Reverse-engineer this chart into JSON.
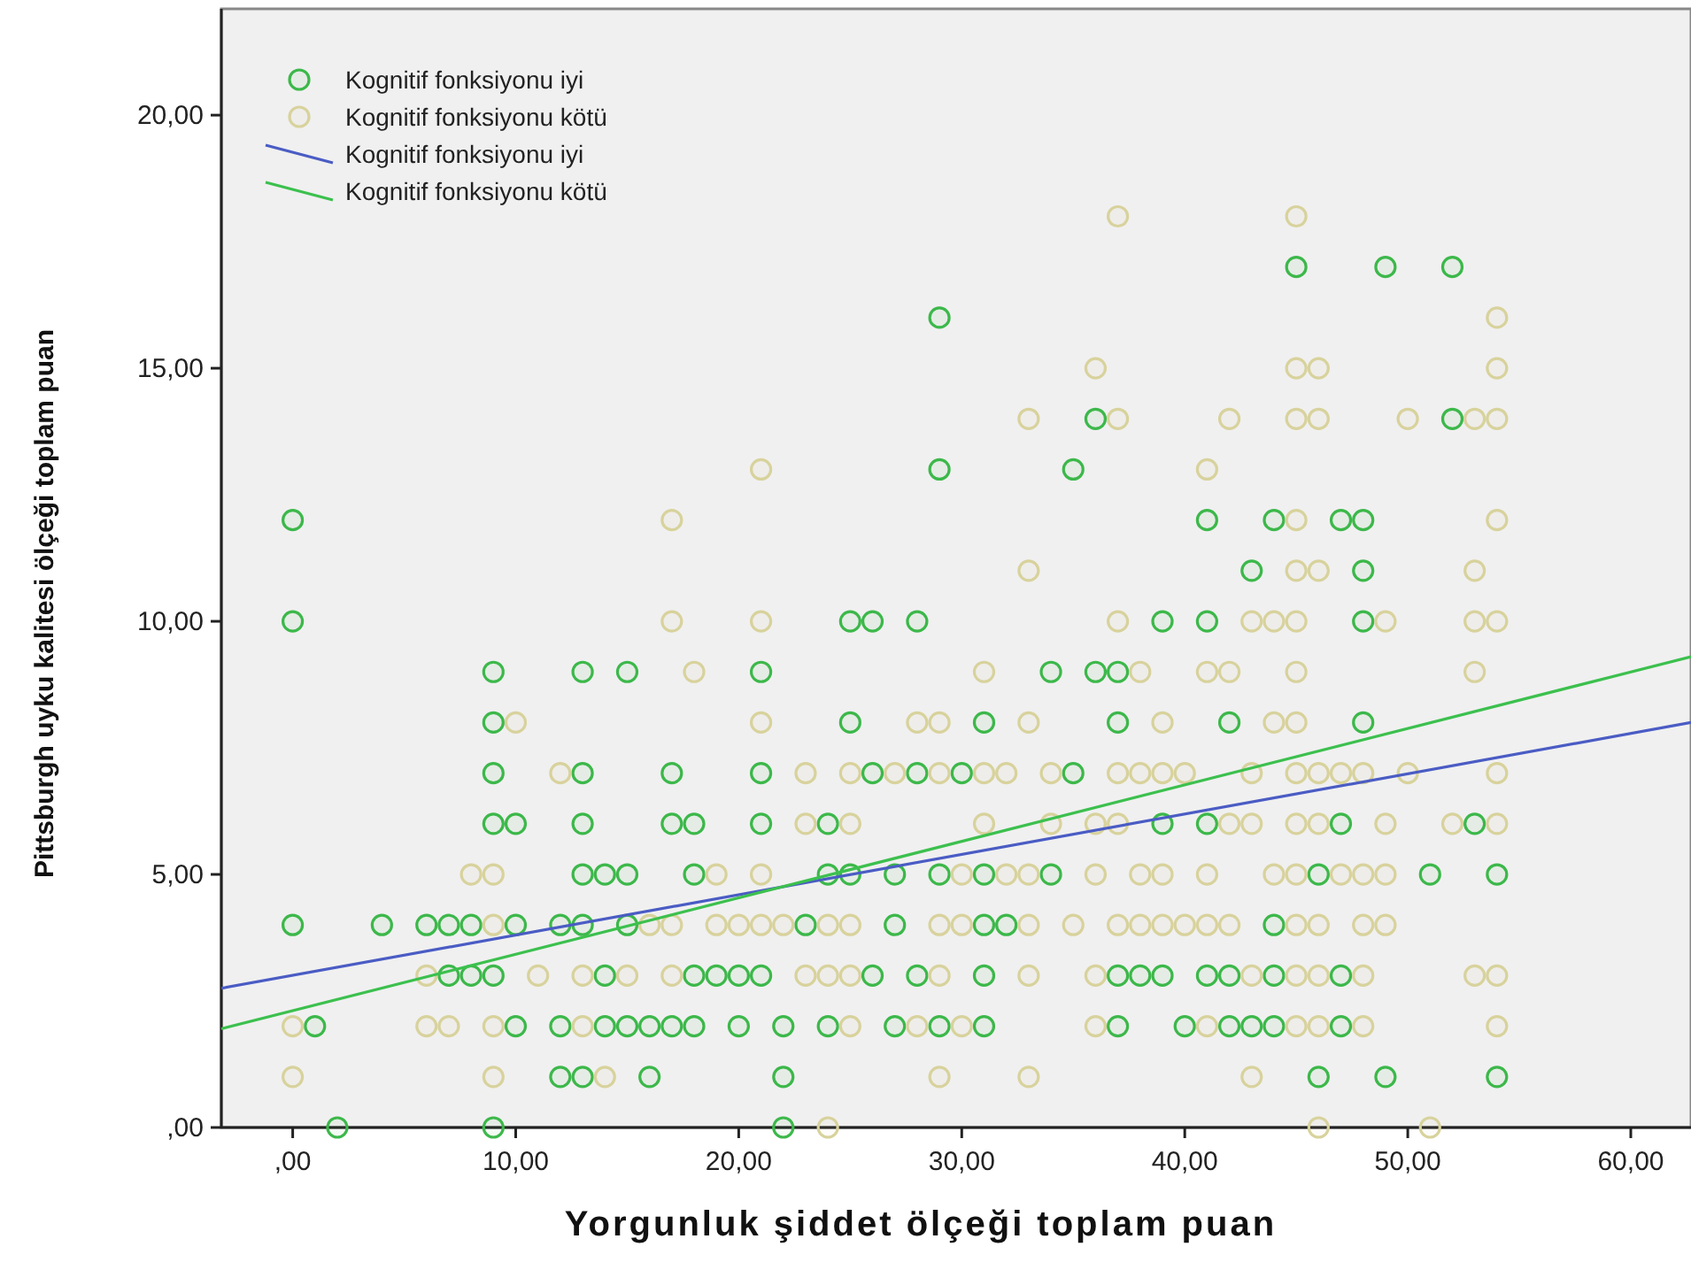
{
  "chart_data": {
    "type": "scatter",
    "xlabel": "Yorgunluk şiddet ölçeği toplam puan",
    "ylabel": "Pittsburgh uyku kalitesi ölçeği toplam puan",
    "xlim": [
      -3.2,
      62.7
    ],
    "ylim": [
      0,
      22.1
    ],
    "xticks": [
      {
        "value": 0,
        "label": ",00"
      },
      {
        "value": 10,
        "label": "10,00"
      },
      {
        "value": 20,
        "label": "20,00"
      },
      {
        "value": 30,
        "label": "30,00"
      },
      {
        "value": 40,
        "label": "40,00"
      },
      {
        "value": 50,
        "label": "50,00"
      },
      {
        "value": 60,
        "label": "60,00"
      }
    ],
    "yticks": [
      {
        "value": 0,
        "label": ",00"
      },
      {
        "value": 5,
        "label": "5,00"
      },
      {
        "value": 10,
        "label": "10,00"
      },
      {
        "value": 15,
        "label": "15,00"
      },
      {
        "value": 20,
        "label": "20,00"
      }
    ],
    "legend": "top left",
    "grid": false,
    "series": [
      {
        "name": "Kognitif fonksiyonu iyi",
        "color": "#3cb84a",
        "marker": "circle",
        "x": [
          2,
          9,
          22,
          12,
          13,
          16,
          22,
          46,
          49,
          54,
          1,
          10,
          12,
          14,
          15,
          16,
          17,
          18,
          20,
          22,
          24,
          27,
          29,
          31,
          37,
          40,
          42,
          43,
          44,
          47,
          7,
          8,
          9,
          14,
          18,
          19,
          20,
          21,
          26,
          28,
          31,
          37,
          38,
          39,
          41,
          42,
          44,
          47,
          0,
          4,
          6,
          7,
          8,
          10,
          12,
          13,
          15,
          23,
          27,
          31,
          32,
          44,
          13,
          14,
          15,
          18,
          24,
          25,
          27,
          29,
          31,
          34,
          46,
          51,
          54,
          9,
          10,
          13,
          17,
          18,
          21,
          24,
          39,
          41,
          47,
          53,
          9,
          13,
          17,
          21,
          26,
          28,
          30,
          35,
          9,
          25,
          31,
          37,
          42,
          48,
          9,
          13,
          15,
          21,
          34,
          36,
          37,
          0,
          25,
          26,
          28,
          39,
          41,
          48,
          43,
          48,
          0,
          41,
          44,
          47,
          48,
          29,
          35,
          36,
          52,
          29,
          45,
          49,
          52
        ],
        "values": [
          0,
          0,
          0,
          1,
          1,
          1,
          1,
          1,
          1,
          1,
          2,
          2,
          2,
          2,
          2,
          2,
          2,
          2,
          2,
          2,
          2,
          2,
          2,
          2,
          2,
          2,
          2,
          2,
          2,
          2,
          3,
          3,
          3,
          3,
          3,
          3,
          3,
          3,
          3,
          3,
          3,
          3,
          3,
          3,
          3,
          3,
          3,
          3,
          4,
          4,
          4,
          4,
          4,
          4,
          4,
          4,
          4,
          4,
          4,
          4,
          4,
          4,
          5,
          5,
          5,
          5,
          5,
          5,
          5,
          5,
          5,
          5,
          5,
          5,
          5,
          6,
          6,
          6,
          6,
          6,
          6,
          6,
          6,
          6,
          6,
          6,
          7,
          7,
          7,
          7,
          7,
          7,
          7,
          7,
          8,
          8,
          8,
          8,
          8,
          8,
          9,
          9,
          9,
          9,
          9,
          9,
          9,
          10,
          10,
          10,
          10,
          10,
          10,
          10,
          11,
          11,
          12,
          12,
          12,
          12,
          12,
          13,
          13,
          14,
          14,
          16,
          17,
          17,
          17
        ]
      },
      {
        "name": "Kognitif fonksiyonu kötü",
        "color": "#d8d29c",
        "marker": "circle",
        "x": [
          24,
          46,
          51,
          0,
          9,
          14,
          29,
          33,
          43,
          0,
          6,
          7,
          9,
          13,
          25,
          28,
          30,
          36,
          41,
          45,
          46,
          48,
          54,
          6,
          11,
          13,
          15,
          17,
          23,
          24,
          25,
          29,
          33,
          36,
          43,
          45,
          46,
          48,
          53,
          54,
          9,
          16,
          17,
          19,
          20,
          21,
          22,
          24,
          25,
          29,
          30,
          33,
          35,
          37,
          38,
          39,
          40,
          41,
          42,
          45,
          46,
          48,
          49,
          8,
          9,
          19,
          21,
          30,
          32,
          33,
          36,
          38,
          39,
          41,
          44,
          45,
          47,
          48,
          49,
          23,
          25,
          31,
          34,
          36,
          37,
          42,
          43,
          45,
          46,
          49,
          52,
          54,
          12,
          23,
          25,
          27,
          29,
          31,
          32,
          34,
          37,
          38,
          39,
          40,
          43,
          45,
          46,
          47,
          48,
          50,
          54,
          10,
          21,
          28,
          29,
          33,
          39,
          44,
          45,
          18,
          31,
          38,
          41,
          42,
          45,
          53,
          17,
          21,
          37,
          43,
          44,
          45,
          49,
          53,
          54,
          33,
          45,
          46,
          53,
          17,
          45,
          54,
          21,
          41,
          33,
          37,
          42,
          45,
          46,
          50,
          53,
          54,
          36,
          45,
          46,
          54,
          54,
          37,
          45
        ],
        "values": [
          0,
          0,
          0,
          1,
          1,
          1,
          1,
          1,
          1,
          2,
          2,
          2,
          2,
          2,
          2,
          2,
          2,
          2,
          2,
          2,
          2,
          2,
          2,
          3,
          3,
          3,
          3,
          3,
          3,
          3,
          3,
          3,
          3,
          3,
          3,
          3,
          3,
          3,
          3,
          3,
          4,
          4,
          4,
          4,
          4,
          4,
          4,
          4,
          4,
          4,
          4,
          4,
          4,
          4,
          4,
          4,
          4,
          4,
          4,
          4,
          4,
          4,
          4,
          5,
          5,
          5,
          5,
          5,
          5,
          5,
          5,
          5,
          5,
          5,
          5,
          5,
          5,
          5,
          5,
          6,
          6,
          6,
          6,
          6,
          6,
          6,
          6,
          6,
          6,
          6,
          6,
          6,
          7,
          7,
          7,
          7,
          7,
          7,
          7,
          7,
          7,
          7,
          7,
          7,
          7,
          7,
          7,
          7,
          7,
          7,
          7,
          8,
          8,
          8,
          8,
          8,
          8,
          8,
          8,
          9,
          9,
          9,
          9,
          9,
          9,
          9,
          10,
          10,
          10,
          10,
          10,
          10,
          10,
          10,
          10,
          11,
          11,
          11,
          11,
          12,
          12,
          12,
          13,
          13,
          14,
          14,
          14,
          14,
          14,
          14,
          14,
          14,
          15,
          15,
          15,
          15,
          16,
          18,
          18
        ]
      },
      {
        "type": "line",
        "name": "Kognitif fonksiyonu iyi",
        "color": "#4a5cc4",
        "marker": "none",
        "x": [
          -3.2,
          62.7
        ],
        "values": [
          2.75,
          8.0
        ]
      },
      {
        "type": "line",
        "name": "Kognitif fonksiyonu kötü",
        "color": "#3cc04e",
        "marker": "none",
        "x": [
          -3.2,
          62.7
        ],
        "values": [
          1.95,
          9.3
        ]
      }
    ]
  }
}
